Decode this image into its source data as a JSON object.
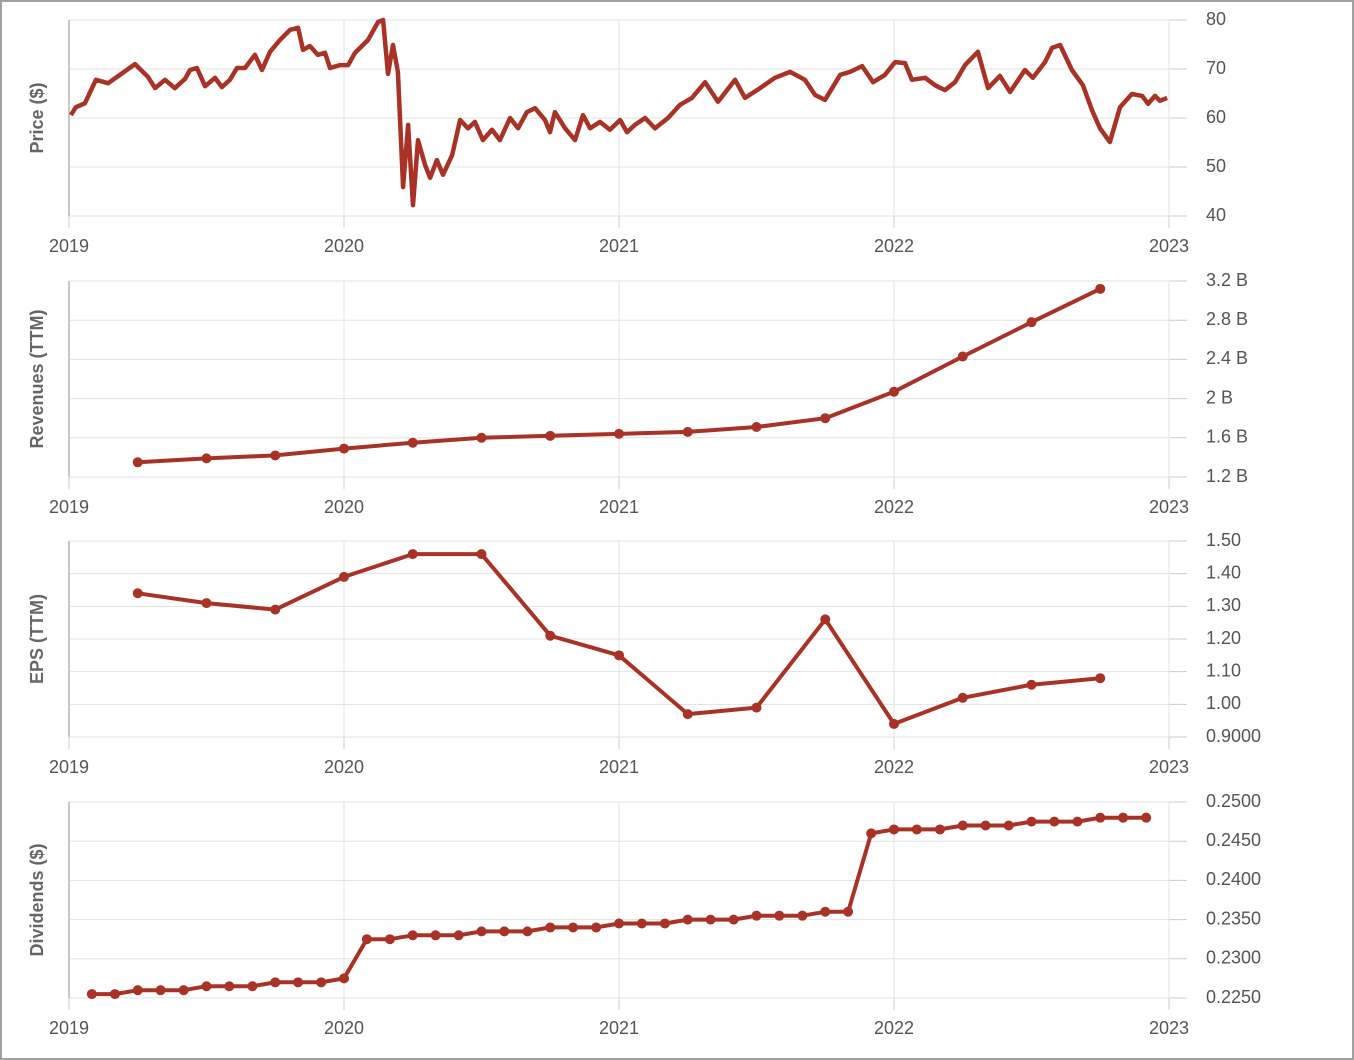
{
  "chart_data": [
    {
      "type": "line",
      "y_label": "Price ($)",
      "color": "#a93226",
      "markers": false,
      "grid": true,
      "xlim": [
        2019,
        2023
      ],
      "xticks": [
        2019,
        2020,
        2021,
        2022,
        2023
      ],
      "ylim": [
        40,
        80
      ],
      "yticks": [
        40,
        50,
        60,
        70,
        80
      ],
      "x": [
        2019.007,
        2019.025,
        2019.058,
        2019.098,
        2019.142,
        2019.185,
        2019.24,
        2019.287,
        2019.313,
        2019.349,
        2019.385,
        2019.422,
        2019.44,
        2019.465,
        2019.495,
        2019.531,
        2019.556,
        2019.585,
        2019.611,
        2019.64,
        2019.676,
        2019.702,
        2019.731,
        2019.767,
        2019.804,
        2019.833,
        2019.851,
        2019.876,
        2019.905,
        2019.931,
        2019.949,
        2019.985,
        2020.015,
        2020.04,
        2020.087,
        2020.124,
        2020.142,
        2020.16,
        2020.178,
        2020.196,
        2020.215,
        2020.233,
        2020.251,
        2020.269,
        2020.295,
        2020.313,
        2020.338,
        2020.36,
        2020.393,
        2020.422,
        2020.451,
        2020.476,
        2020.505,
        2020.538,
        2020.567,
        2020.604,
        2020.633,
        2020.665,
        2020.695,
        2020.731,
        2020.749,
        2020.767,
        2020.804,
        2020.84,
        2020.869,
        2020.895,
        2020.931,
        2020.967,
        2021.004,
        2021.029,
        2021.058,
        2021.095,
        2021.131,
        2021.178,
        2021.222,
        2021.265,
        2021.313,
        2021.36,
        2021.422,
        2021.458,
        2021.513,
        2021.567,
        2021.622,
        2021.676,
        2021.713,
        2021.749,
        2021.804,
        2021.84,
        2021.884,
        2021.924,
        2021.967,
        2022.004,
        2022.04,
        2022.065,
        2022.113,
        2022.149,
        2022.185,
        2022.222,
        2022.258,
        2022.305,
        2022.342,
        2022.385,
        2022.422,
        2022.476,
        2022.505,
        2022.549,
        2022.575,
        2022.604,
        2022.647,
        2022.687,
        2022.72,
        2022.749,
        2022.785,
        2022.822,
        2022.865,
        2022.902,
        2022.924,
        2022.949,
        2022.967,
        2022.993
      ],
      "values": [
        60.6,
        62.2,
        63,
        67.8,
        67.1,
        68.8,
        71,
        68.4,
        66.1,
        67.8,
        66.1,
        68,
        69.8,
        70.2,
        66.5,
        68.2,
        66.3,
        67.8,
        70.2,
        70.2,
        72.9,
        69.8,
        73.5,
        75.9,
        78,
        78.4,
        73.9,
        74.7,
        72.9,
        73.3,
        70.2,
        70.8,
        70.8,
        73.3,
        75.9,
        79.6,
        80,
        69,
        74.9,
        69.4,
        45.9,
        58.6,
        42.2,
        55.5,
        50.4,
        47.8,
        51.4,
        48.4,
        52.4,
        59.6,
        57.9,
        59.2,
        55.5,
        57.6,
        55.5,
        60,
        57.9,
        61.2,
        62,
        59.6,
        57.1,
        61.2,
        57.9,
        55.5,
        60.6,
        57.9,
        59.2,
        57.6,
        59.6,
        57.1,
        58.6,
        60,
        57.9,
        60,
        62.7,
        64.1,
        67.3,
        63.3,
        67.8,
        64.1,
        66.1,
        68.2,
        69.4,
        67.8,
        64.7,
        63.7,
        68.8,
        69.4,
        70.6,
        67.3,
        68.8,
        71.4,
        71.2,
        67.8,
        68.2,
        66.7,
        65.7,
        67.3,
        70.8,
        73.5,
        66.1,
        68.6,
        65.3,
        69.8,
        68.2,
        71.4,
        74.3,
        74.9,
        69.8,
        66.7,
        61.6,
        57.9,
        55.1,
        62.2,
        64.9,
        64.5,
        62.9,
        64.5,
        63.5,
        64.1
      ]
    },
    {
      "type": "line",
      "y_label": "Revenues (TTM)",
      "color": "#a93226",
      "markers": true,
      "grid": true,
      "xlim": [
        2019,
        2023
      ],
      "xticks": [
        2019,
        2020,
        2021,
        2022,
        2023
      ],
      "ylim": [
        1.2,
        3.2
      ],
      "yticks": [
        {
          "value": 1.2,
          "label": "1.2 B"
        },
        {
          "value": 1.6,
          "label": "1.6 B"
        },
        {
          "value": 2,
          "label": "2 B"
        },
        {
          "value": 2.4,
          "label": "2.4 B"
        },
        {
          "value": 2.8,
          "label": "2.8 B"
        },
        {
          "value": 3.2,
          "label": "3.2 B"
        }
      ],
      "x": [
        2019.25,
        2019.5,
        2019.75,
        2020,
        2020.25,
        2020.5,
        2020.75,
        2021,
        2021.25,
        2021.5,
        2021.75,
        2022,
        2022.25,
        2022.5,
        2022.75
      ],
      "values": [
        1.35,
        1.39,
        1.42,
        1.49,
        1.55,
        1.6,
        1.62,
        1.64,
        1.66,
        1.71,
        1.8,
        2.07,
        2.43,
        2.78,
        3.12
      ]
    },
    {
      "type": "line",
      "y_label": "EPS (TTM)",
      "color": "#a93226",
      "markers": true,
      "grid": true,
      "xlim": [
        2019,
        2023
      ],
      "xticks": [
        2019,
        2020,
        2021,
        2022,
        2023
      ],
      "ylim": [
        0.9,
        1.5
      ],
      "yticks": [
        {
          "value": 0.9,
          "label": "0.9000"
        },
        {
          "value": 1.0,
          "label": "1.00"
        },
        {
          "value": 1.1,
          "label": "1.10"
        },
        {
          "value": 1.2,
          "label": "1.20"
        },
        {
          "value": 1.3,
          "label": "1.30"
        },
        {
          "value": 1.4,
          "label": "1.40"
        },
        {
          "value": 1.5,
          "label": "1.50"
        }
      ],
      "x": [
        2019.25,
        2019.5,
        2019.75,
        2020,
        2020.25,
        2020.5,
        2020.75,
        2021,
        2021.25,
        2021.5,
        2021.75,
        2022,
        2022.25,
        2022.5,
        2022.75
      ],
      "values": [
        1.34,
        1.31,
        1.29,
        1.39,
        1.46,
        1.46,
        1.21,
        1.15,
        0.97,
        0.99,
        1.26,
        0.94,
        1.02,
        1.06,
        1.08
      ]
    },
    {
      "type": "line",
      "y_label": "Dividends ($)",
      "color": "#a93226",
      "markers": true,
      "grid": true,
      "xlim": [
        2019,
        2023
      ],
      "xticks": [
        2019,
        2020,
        2021,
        2022,
        2023
      ],
      "ylim": [
        0.225,
        0.25
      ],
      "yticks": [
        {
          "value": 0.225,
          "label": "0.2250"
        },
        {
          "value": 0.23,
          "label": "0.2300"
        },
        {
          "value": 0.235,
          "label": "0.2350"
        },
        {
          "value": 0.24,
          "label": "0.2400"
        },
        {
          "value": 0.245,
          "label": "0.2450"
        },
        {
          "value": 0.25,
          "label": "0.2500"
        }
      ],
      "x": [
        2019.083,
        2019.167,
        2019.25,
        2019.333,
        2019.417,
        2019.5,
        2019.583,
        2019.667,
        2019.75,
        2019.833,
        2019.917,
        2020,
        2020.083,
        2020.167,
        2020.25,
        2020.333,
        2020.417,
        2020.5,
        2020.583,
        2020.667,
        2020.75,
        2020.833,
        2020.917,
        2021,
        2021.083,
        2021.167,
        2021.25,
        2021.333,
        2021.417,
        2021.5,
        2021.583,
        2021.667,
        2021.75,
        2021.833,
        2021.917,
        2022,
        2022.083,
        2022.167,
        2022.25,
        2022.333,
        2022.417,
        2022.5,
        2022.583,
        2022.667,
        2022.75,
        2022.833,
        2022.917
      ],
      "values": [
        0.2255,
        0.2255,
        0.226,
        0.226,
        0.226,
        0.2265,
        0.2265,
        0.2265,
        0.227,
        0.227,
        0.227,
        0.2275,
        0.2325,
        0.2325,
        0.233,
        0.233,
        0.233,
        0.2335,
        0.2335,
        0.2335,
        0.234,
        0.234,
        0.234,
        0.2345,
        0.2345,
        0.2345,
        0.235,
        0.235,
        0.235,
        0.2355,
        0.2355,
        0.2355,
        0.236,
        0.236,
        0.246,
        0.2465,
        0.2465,
        0.2465,
        0.247,
        0.247,
        0.247,
        0.2475,
        0.2475,
        0.2475,
        0.248,
        0.248,
        0.248
      ]
    }
  ]
}
